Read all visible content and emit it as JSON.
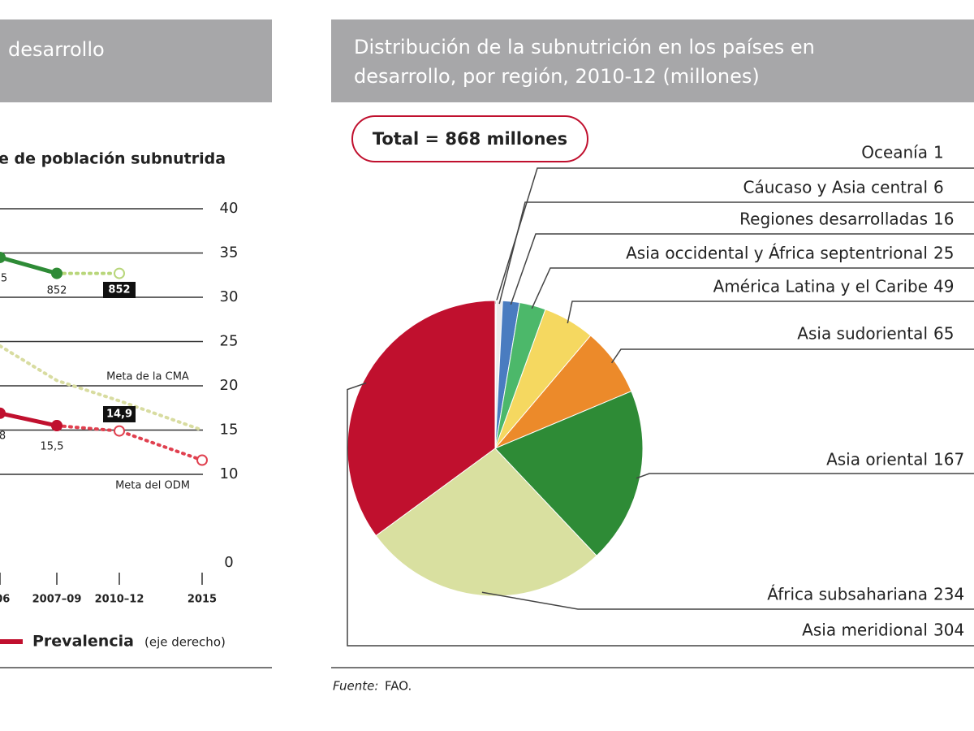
{
  "charts": [
    {
      "chart_data": {
        "type": "line",
        "title": "desarrollo",
        "y_label": "e de población subnutrida",
        "categories": [
          "–06",
          "2007–09",
          "2010–12",
          "2015"
        ],
        "ylim": [
          0,
          40
        ],
        "yticks": [
          0,
          10,
          15,
          20,
          25,
          30,
          35,
          40
        ],
        "grid": true,
        "series": [
          {
            "color": "#b8d67a",
            "style": "dotted",
            "marker": "hollow",
            "values": [
              null,
              32.7,
              32.7,
              null
            ]
          },
          {
            "color": "#2e8b36",
            "style": "solid",
            "marker": "filled",
            "values": [
              34.5,
              32.7,
              null,
              null
            ]
          },
          {
            "color": "#d8dca0",
            "style": "dotted",
            "values": [
              24.5,
              20.6,
              18.3,
              15
            ]
          },
          {
            "color": "#e0404f",
            "style": "dotted",
            "marker": "hollow",
            "values": [
              null,
              15.5,
              14.9,
              11.6
            ]
          },
          {
            "name": "Prevalencia",
            "color": "#c0102e",
            "style": "solid",
            "marker": "filled",
            "values": [
              16.9,
              15.5,
              null,
              null
            ]
          }
        ],
        "legend_note": "(eje derecho)",
        "annotations": [
          "5",
          "852",
          "852",
          "Meta de la CMA",
          "14,9",
          "8",
          "15,5",
          "Meta del ODM"
        ]
      }
    },
    {
      "chart_data": {
        "type": "pie",
        "title": "Distribución de la subnutrición en los países en desarrollo, por región, 2010-12 (millones)",
        "total_label": "Total = 868 millones",
        "categories": [
          "Oceanía",
          "Cáucaso y Asia central",
          "Regiones desarrolladas",
          "Asia occidental y África septentrional",
          "América Latina y el Caribe",
          "Asia sudoriental",
          "Asia oriental",
          "África subsahariana",
          "Asia meridional"
        ],
        "values": [
          1,
          6,
          16,
          25,
          49,
          65,
          167,
          234,
          304
        ],
        "colors": [
          "#cfcfcf",
          "#ececec",
          "#4a7cc0",
          "#4cb86a",
          "#f5d860",
          "#ec8a2a",
          "#2e8b36",
          "#d9e0a0",
          "#c0102e"
        ],
        "source_label": "Fuente:",
        "source": "FAO."
      }
    }
  ]
}
